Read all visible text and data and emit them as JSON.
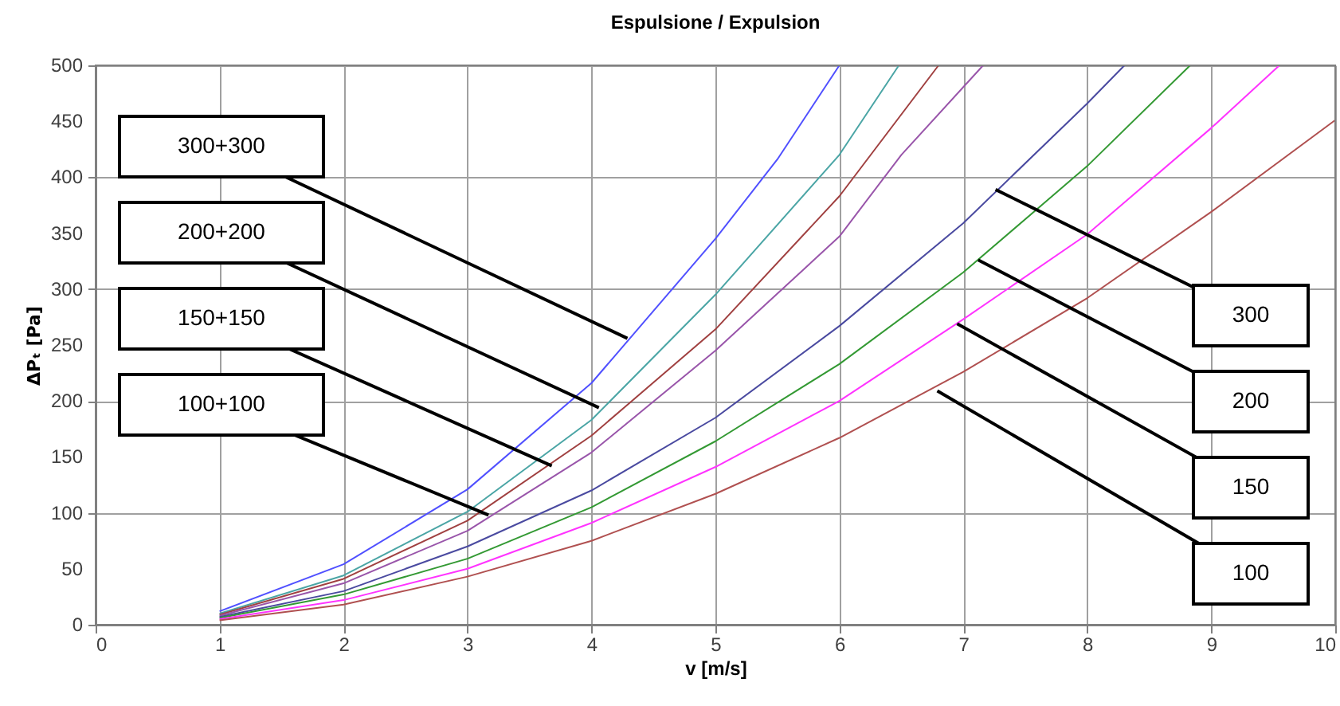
{
  "chart_data": {
    "type": "line",
    "title": "Espulsione / Expulsion",
    "xlabel": "v [m/s]",
    "ylabel": "ΔPₜ [Pa]",
    "xlim": [
      0,
      10
    ],
    "ylim": [
      0,
      500
    ],
    "xticks": [
      0,
      1,
      2,
      3,
      4,
      5,
      6,
      7,
      8,
      9,
      10
    ],
    "yticks": [
      0,
      50,
      100,
      150,
      200,
      250,
      300,
      350,
      400,
      450,
      500
    ],
    "grid": true,
    "marker": "none",
    "line_style": "solid",
    "series": [
      {
        "color": "#5050ff",
        "x": [
          1,
          2,
          3,
          4,
          5,
          5.5,
          6
        ],
        "values": [
          12,
          54,
          121,
          216,
          345,
          416,
          500
        ]
      },
      {
        "color": "#4aa5a5",
        "x": [
          1,
          2,
          3,
          4,
          5,
          6,
          6.48
        ],
        "values": [
          10,
          44,
          101,
          183,
          295,
          420,
          500
        ]
      },
      {
        "color": "#a04040",
        "x": [
          1,
          2,
          3,
          4,
          5,
          6,
          6.8
        ],
        "values": [
          9,
          41,
          93,
          169,
          264,
          383,
          500
        ]
      },
      {
        "color": "#9955aa",
        "x": [
          1,
          2,
          3,
          4,
          5,
          6,
          6.5,
          7.16
        ],
        "values": [
          8,
          37,
          84,
          154,
          245,
          347,
          420,
          500
        ]
      },
      {
        "color": "#4a4aa0",
        "x": [
          1,
          2,
          3,
          4,
          5,
          6,
          7,
          8,
          8.3
        ],
        "values": [
          7,
          30,
          70,
          120,
          185,
          267,
          359,
          466,
          500
        ]
      },
      {
        "color": "#339933",
        "x": [
          1,
          2,
          3,
          4,
          5,
          6,
          7,
          8,
          8.83
        ],
        "values": [
          6,
          27,
          59,
          105,
          164,
          233,
          315,
          410,
          500
        ]
      },
      {
        "color": "#ff33ff",
        "x": [
          1,
          2,
          3,
          4,
          5,
          6,
          7,
          8,
          9,
          9.55
        ],
        "values": [
          5,
          22,
          50,
          91,
          141,
          200,
          273,
          349,
          444,
          500
        ]
      },
      {
        "color": "#b05050",
        "x": [
          1,
          2,
          3,
          4,
          5,
          6,
          7,
          8,
          9,
          10
        ],
        "values": [
          4,
          18,
          43,
          75,
          117,
          167,
          226,
          292,
          369,
          451
        ]
      }
    ],
    "annotations": [
      {
        "text": "300+300",
        "x": 4.29,
        "y": 256
      },
      {
        "text": "200+200",
        "x": 4.06,
        "y": 194
      },
      {
        "text": "150+150",
        "x": 3.68,
        "y": 142
      },
      {
        "text": "100+100",
        "x": 3.17,
        "y": 98
      },
      {
        "text": "300",
        "x": 7.26,
        "y": 389
      },
      {
        "text": "200",
        "x": 7.12,
        "y": 326
      },
      {
        "text": "150",
        "x": 6.95,
        "y": 269
      },
      {
        "text": "100",
        "x": 6.79,
        "y": 209
      }
    ]
  }
}
